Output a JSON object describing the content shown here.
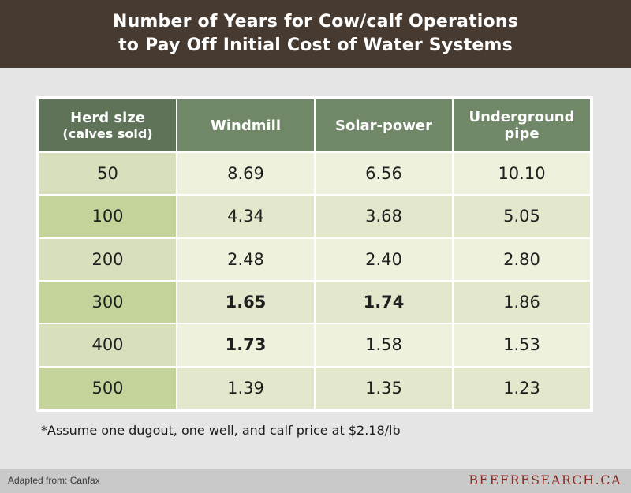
{
  "title_lines": [
    "Number of Years for Cow/calf Operations",
    "to Pay Off Initial Cost of Water Systems"
  ],
  "chart_data": {
    "type": "table",
    "columns": [
      {
        "label": "Herd size",
        "sublabel": "(calves sold)"
      },
      {
        "label": "Windmill",
        "sublabel": ""
      },
      {
        "label": "Solar-power",
        "sublabel": ""
      },
      {
        "label": "Underground",
        "sublabel": "pipe"
      }
    ],
    "rows": [
      {
        "herd": "50",
        "values": [
          "8.69",
          "6.56",
          "10.10"
        ],
        "bold": [
          false,
          false,
          false
        ]
      },
      {
        "herd": "100",
        "values": [
          "4.34",
          "3.68",
          "5.05"
        ],
        "bold": [
          false,
          false,
          false
        ]
      },
      {
        "herd": "200",
        "values": [
          "2.48",
          "2.40",
          "2.80"
        ],
        "bold": [
          false,
          false,
          false
        ]
      },
      {
        "herd": "300",
        "values": [
          "1.65",
          "1.74",
          "1.86"
        ],
        "bold": [
          true,
          true,
          false
        ]
      },
      {
        "herd": "400",
        "values": [
          "1.73",
          "1.58",
          "1.53"
        ],
        "bold": [
          true,
          false,
          false
        ]
      },
      {
        "herd": "500",
        "values": [
          "1.39",
          "1.35",
          "1.23"
        ],
        "bold": [
          false,
          false,
          false
        ]
      }
    ]
  },
  "footnote": "*Assume one dugout, one well, and calf price at $2.18/lb",
  "source": "Adapted from: Canfax",
  "brand": "BEEFRESEARCH.CA",
  "colors": {
    "header_bg": "#473a31",
    "table_header": "#708868",
    "brand_text": "#8c2a23"
  }
}
